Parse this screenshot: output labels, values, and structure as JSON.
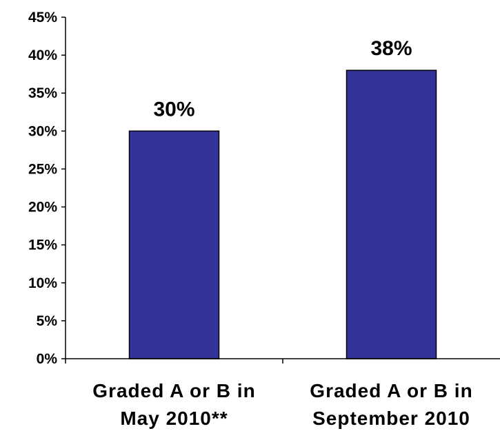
{
  "chart_data": {
    "type": "bar",
    "categories": [
      [
        "Graded A or B in",
        "May 2010**"
      ],
      [
        "Graded A or B in",
        "September 2010"
      ]
    ],
    "values": [
      30,
      38
    ],
    "data_labels": [
      "30%",
      "38%"
    ],
    "y_tick_labels": [
      "0%",
      "5%",
      "10%",
      "15%",
      "20%",
      "25%",
      "30%",
      "35%",
      "40%",
      "45%"
    ],
    "ylim": [
      0,
      45
    ],
    "y_step": 5,
    "grid": false,
    "legend": "none",
    "bar_color": "#333399",
    "bar_edge_color": "#000000"
  }
}
